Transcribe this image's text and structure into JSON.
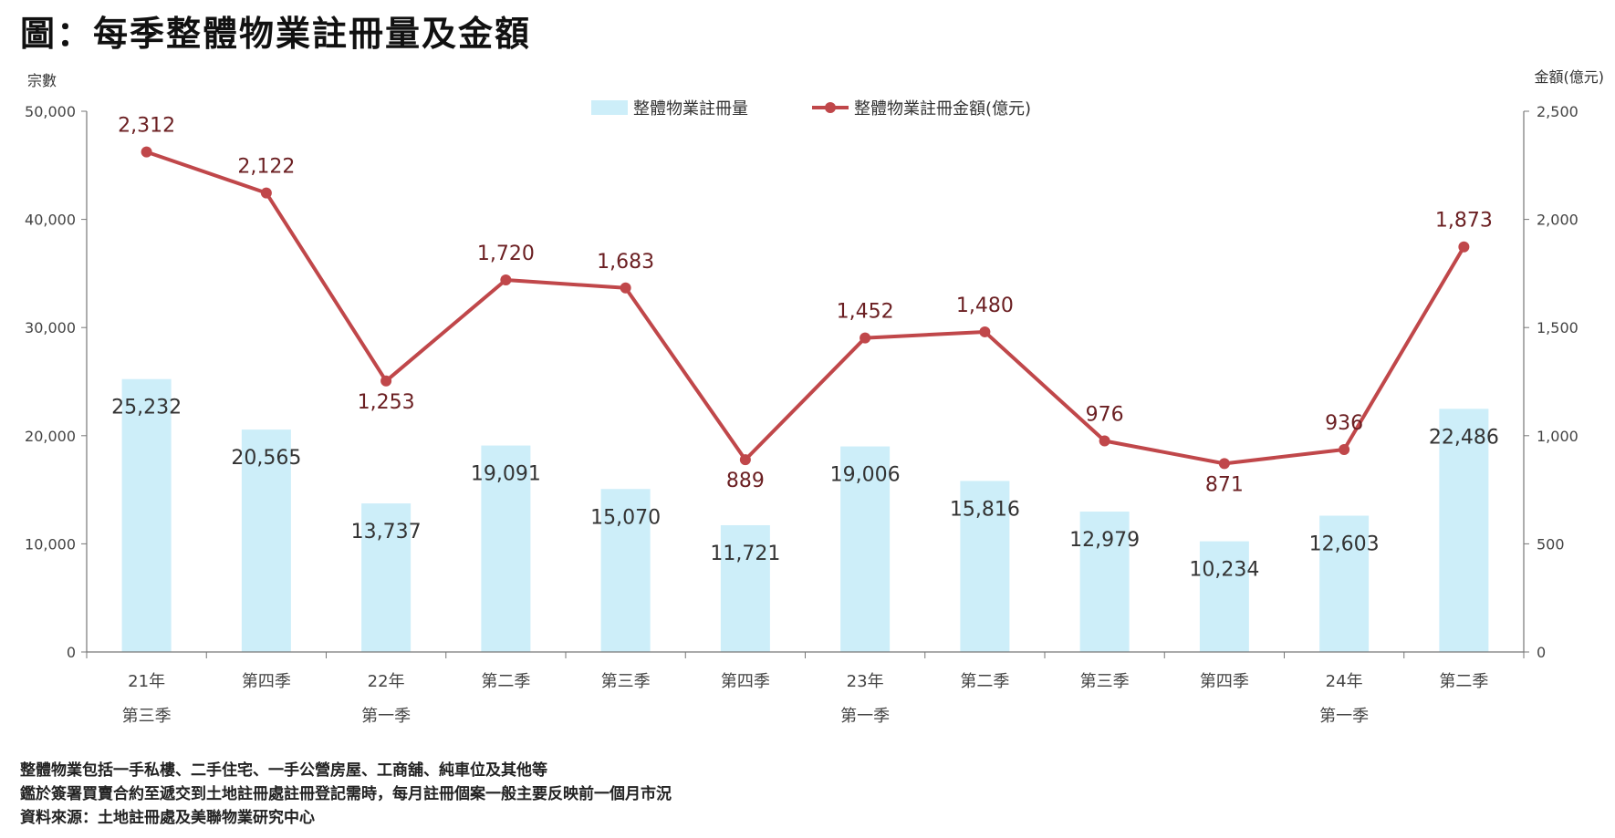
{
  "title": "圖：每季整體物業註冊量及金額",
  "chart_data": {
    "type": "bar+line",
    "left_axis_label": "宗數",
    "right_axis_label": "金額(億元)",
    "left_ylim": [
      0,
      50000
    ],
    "right_ylim": [
      0,
      2500
    ],
    "left_ticks": [
      "0",
      "10,000",
      "20,000",
      "30,000",
      "40,000",
      "50,000"
    ],
    "right_ticks": [
      "0",
      "500",
      "1,000",
      "1,500",
      "2,000",
      "2,500"
    ],
    "categories": [
      {
        "line1": "21年",
        "line2": "第三季"
      },
      {
        "line1": "第四季",
        "line2": ""
      },
      {
        "line1": "22年",
        "line2": "第一季"
      },
      {
        "line1": "第二季",
        "line2": ""
      },
      {
        "line1": "第三季",
        "line2": ""
      },
      {
        "line1": "第四季",
        "line2": ""
      },
      {
        "line1": "23年",
        "line2": "第一季"
      },
      {
        "line1": "第二季",
        "line2": ""
      },
      {
        "line1": "第三季",
        "line2": ""
      },
      {
        "line1": "第四季",
        "line2": ""
      },
      {
        "line1": "24年",
        "line2": "第一季"
      },
      {
        "line1": "第二季",
        "line2": ""
      }
    ],
    "series": [
      {
        "name": "整體物業註冊量",
        "type": "bar",
        "axis": "left",
        "color": "#cdeef9",
        "values": [
          25232,
          20565,
          13737,
          19091,
          15070,
          11721,
          19006,
          15816,
          12979,
          10234,
          12603,
          22486
        ],
        "labels": [
          "25,232",
          "20,565",
          "13,737",
          "19,091",
          "15,070",
          "11,721",
          "19,006",
          "15,816",
          "12,979",
          "10,234",
          "12,603",
          "22,486"
        ]
      },
      {
        "name": "整體物業註冊金額(億元)",
        "type": "line",
        "axis": "right",
        "color": "#c0474a",
        "label_color": "#6b1f22",
        "values": [
          2312,
          2122,
          1253,
          1720,
          1683,
          889,
          1452,
          1480,
          976,
          871,
          936,
          1873
        ],
        "labels": [
          "2,312",
          "2,122",
          "1,253",
          "1,720",
          "1,683",
          "889",
          "1,452",
          "1,480",
          "976",
          "871",
          "936",
          "1,873"
        ]
      }
    ],
    "legend_position": "top-center",
    "grid": false
  },
  "footnotes": [
    "整體物業包括一手私樓、二手住宅、一手公營房屋、工商舖、純車位及其他等",
    "鑑於簽署買賣合約至遞交到土地註冊處註冊登記需時，每月註冊個案一般主要反映前一個月市況",
    "資料來源：土地註冊處及美聯物業研究中心"
  ]
}
